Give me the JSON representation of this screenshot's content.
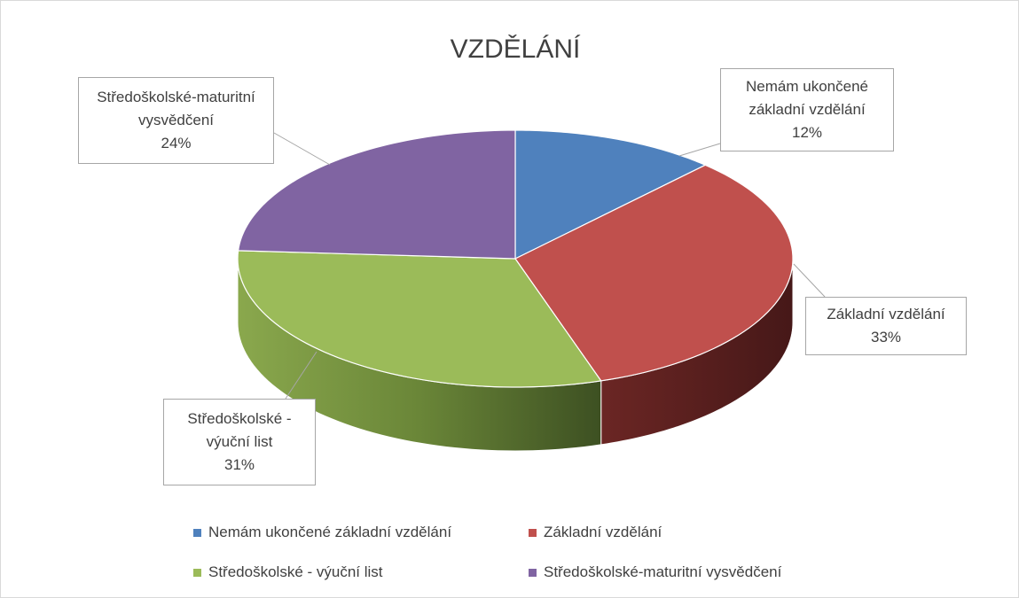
{
  "chart_data": {
    "type": "pie",
    "title": "VZDĚLÁNÍ",
    "categories": [
      "Nemám ukončené základní vzdělání",
      "Základní vzdělání",
      "Středoškolské - výuční list",
      "Středoškolské-maturitní vysvědčení"
    ],
    "values": [
      12,
      33,
      31,
      24
    ],
    "value_labels": [
      "12%",
      "33%",
      "31%",
      "24%"
    ],
    "colors": [
      "#4f81bd",
      "#c0504d",
      "#9bbb59",
      "#8064a2"
    ],
    "legend": "bottom"
  }
}
